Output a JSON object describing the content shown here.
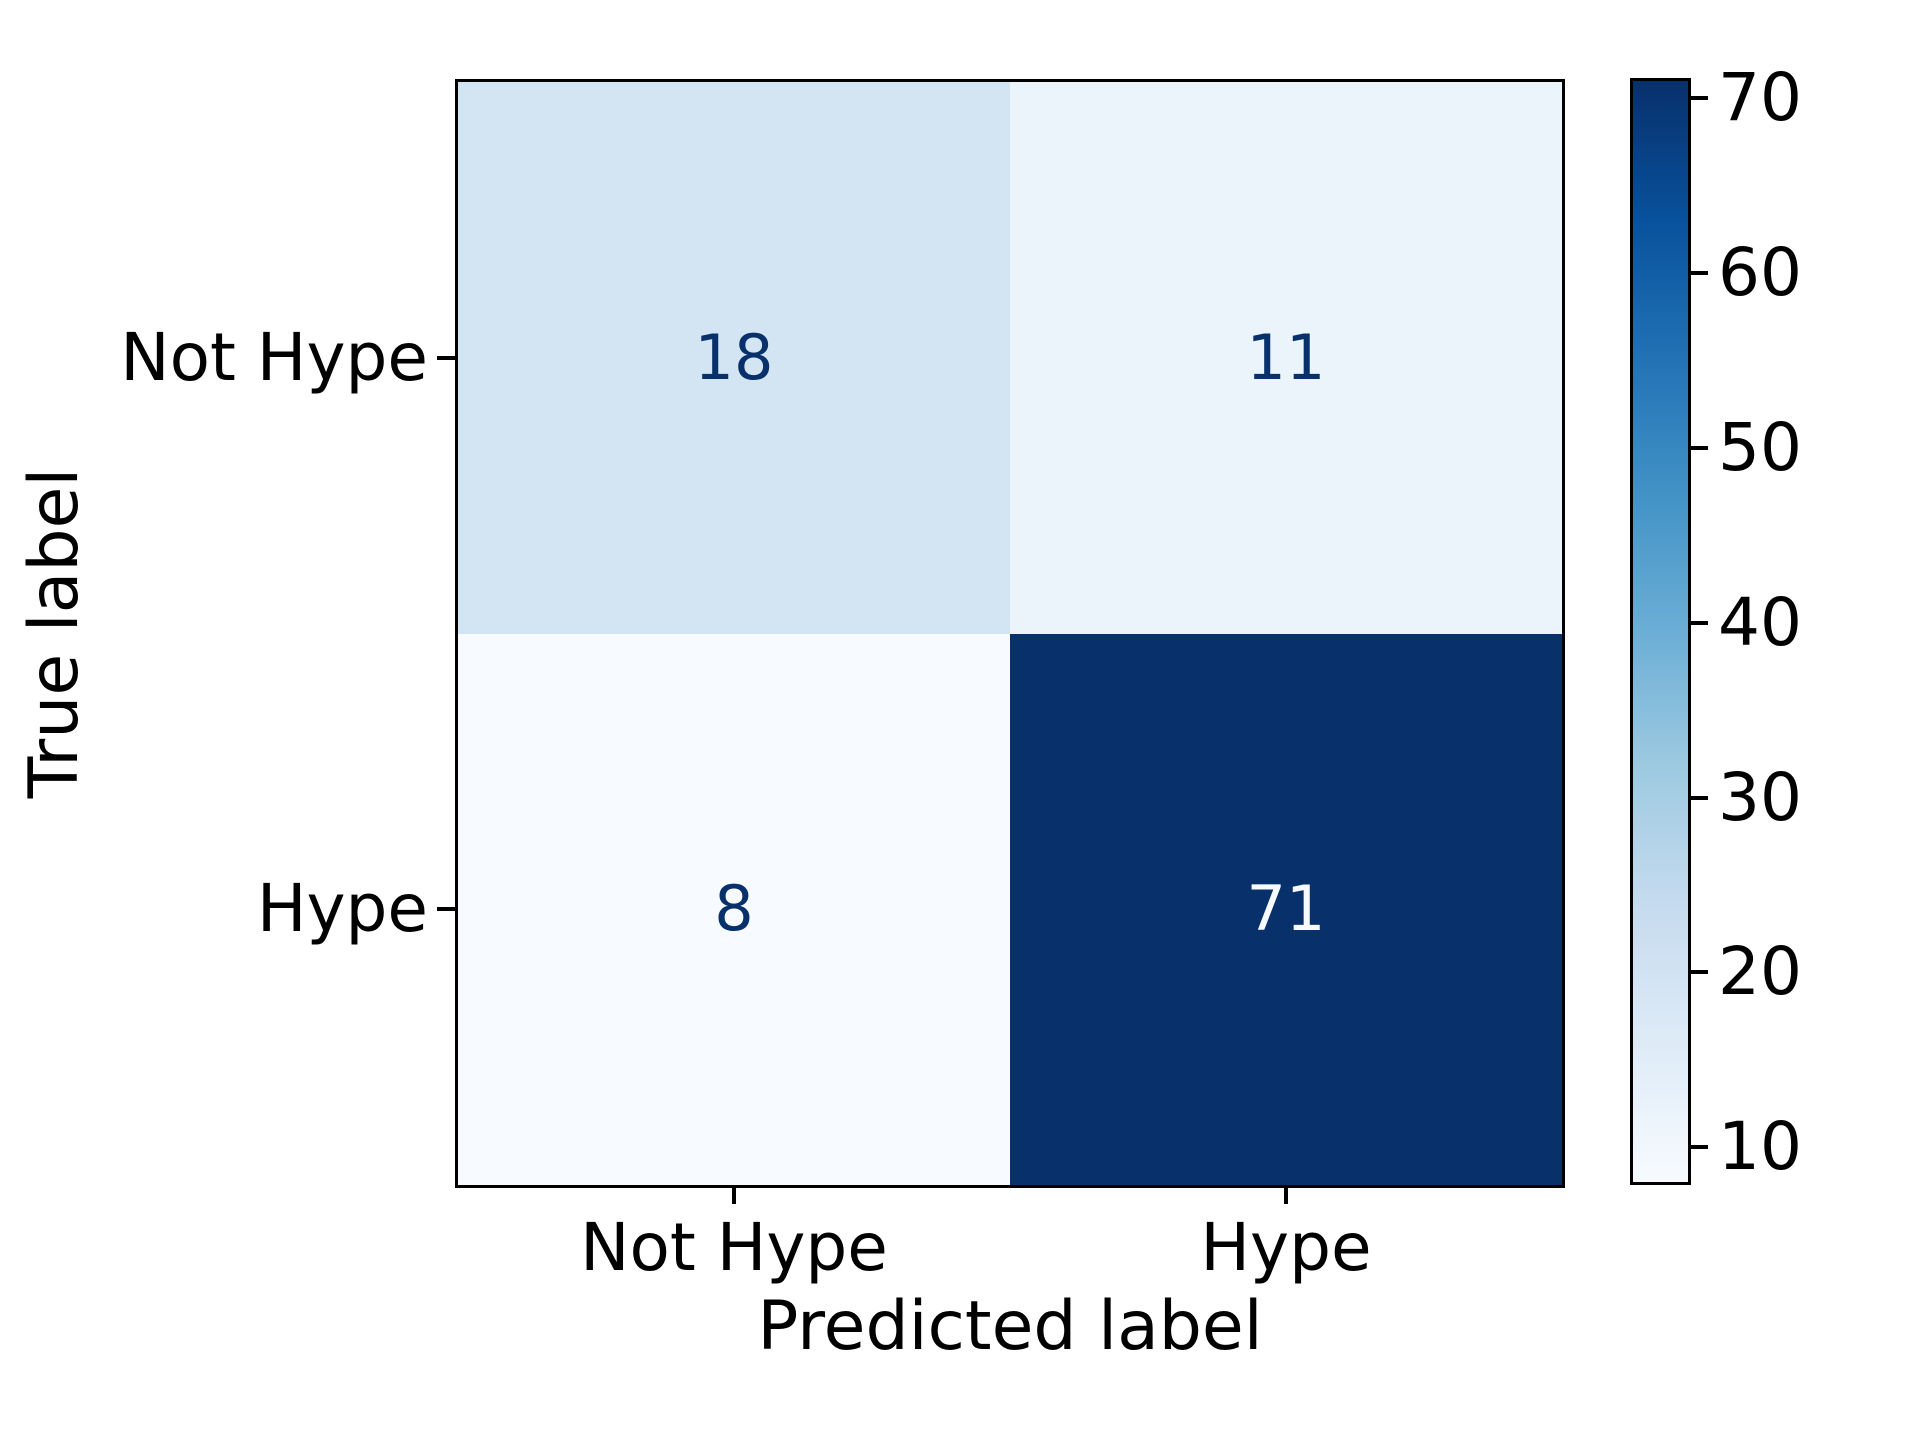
{
  "figure": {
    "background": "#ffffff",
    "axis_color": "#000000"
  },
  "chart_data": {
    "type": "heatmap",
    "title": "",
    "xlabel": "Predicted label",
    "ylabel": "True label",
    "x_categories": [
      "Not Hype",
      "Hype"
    ],
    "y_categories": [
      "Not Hype",
      "Hype"
    ],
    "matrix": [
      [
        18,
        11
      ],
      [
        8,
        71
      ]
    ],
    "cells": [
      {
        "row": 0,
        "col": 0,
        "value": "18",
        "bg": "#d3e4f3",
        "fg": "#08306b"
      },
      {
        "row": 0,
        "col": 1,
        "value": "11",
        "bg": "#ebf3fb",
        "fg": "#08306b"
      },
      {
        "row": 1,
        "col": 0,
        "value": "8",
        "bg": "#f7fbff",
        "fg": "#08306b"
      },
      {
        "row": 1,
        "col": 1,
        "value": "71",
        "bg": "#08306b",
        "fg": "#f7fbff"
      }
    ],
    "colormap": {
      "name": "Blues",
      "stops": [
        "#f7fbff",
        "#deebf7",
        "#c6dbef",
        "#9ecae1",
        "#6baed6",
        "#4292c6",
        "#2171b5",
        "#08519c",
        "#08306b"
      ]
    },
    "colorbar": {
      "vmin": 8,
      "vmax": 71,
      "tick_values": [
        10,
        20,
        30,
        40,
        50,
        60,
        70
      ],
      "tick_labels": [
        "10",
        "20",
        "30",
        "40",
        "50",
        "60",
        "70"
      ],
      "position": "right"
    },
    "grid": false,
    "legend": null
  }
}
